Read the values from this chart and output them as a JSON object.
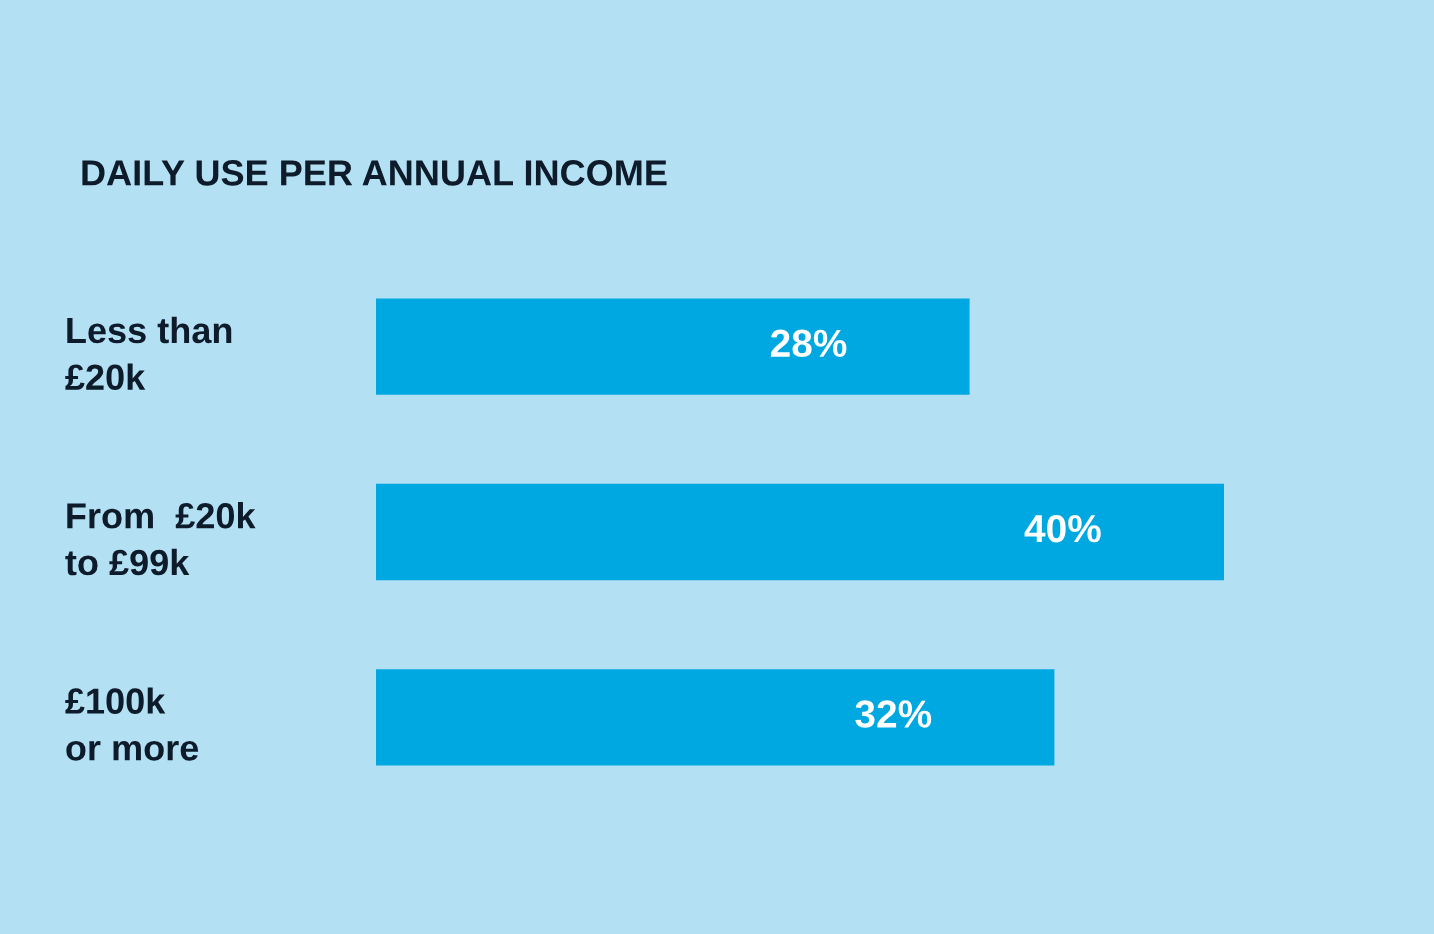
{
  "chart_data": {
    "type": "bar",
    "orientation": "horizontal",
    "title": "DAILY USE PER ANNUAL INCOME",
    "categories": [
      "Less than\n£20k",
      "From  £20k\nto £99k",
      "£100k\nor more"
    ],
    "values": [
      28,
      40,
      32
    ],
    "value_labels": [
      "28%",
      "40%",
      "32%"
    ],
    "color": "#00a8e1",
    "tick_labels": "y",
    "grid": false
  }
}
